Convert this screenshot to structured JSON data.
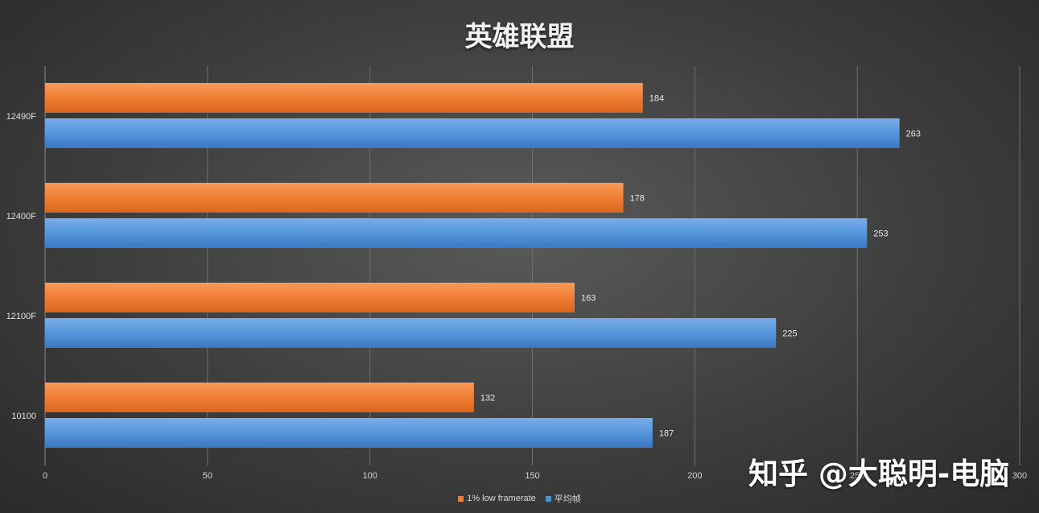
{
  "chart_data": {
    "type": "bar",
    "orientation": "horizontal",
    "title": "英雄联盟",
    "categories": [
      "12490F",
      "12400F",
      "12100F",
      "10100"
    ],
    "series": [
      {
        "name": "1% low framerate",
        "values": [
          184,
          178,
          163,
          132
        ],
        "color": "#ee7d31"
      },
      {
        "name": "平均帧",
        "values": [
          263,
          253,
          225,
          187
        ],
        "color": "#4f8fd6"
      }
    ],
    "xlim": [
      0,
      300
    ],
    "xticks": [
      0,
      50,
      100,
      150,
      200,
      250,
      300
    ],
    "grid": true,
    "legend_position": "bottom",
    "data_labels": true
  },
  "watermark": "知乎 @大聪明-电脑"
}
